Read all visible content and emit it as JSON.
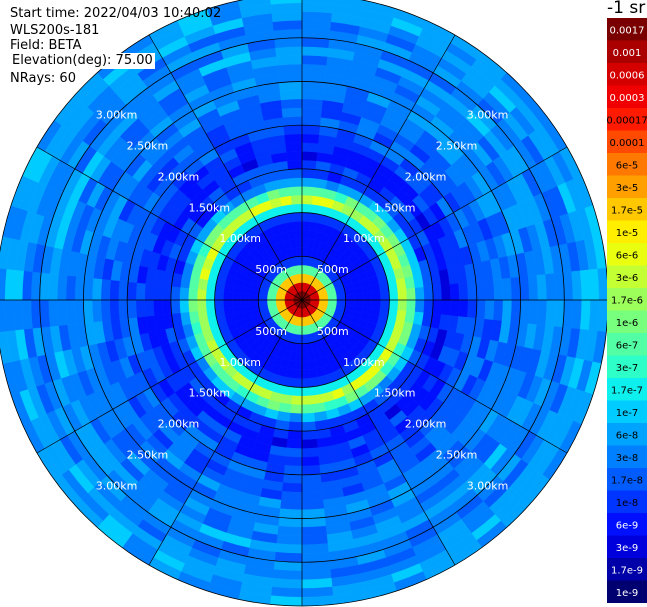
{
  "header": {
    "start_time": "Start time: 2022/04/03 10:40:02",
    "instrument": "WLS200s-181",
    "field": "Field: BETA",
    "elevation": "Elevation(deg): 75.00",
    "nrays": "NRays: 60"
  },
  "colorbar": {
    "units_label": "-1 sr",
    "entries": [
      {
        "label": "0.0017",
        "color": "#7a0000"
      },
      {
        "label": "0.001",
        "color": "#aa0000"
      },
      {
        "label": "0.0006",
        "color": "#d40000"
      },
      {
        "label": "0.0003",
        "color": "#f00000"
      },
      {
        "label": "0.00017",
        "color": "#ff1a00"
      },
      {
        "label": "0.0001",
        "color": "#ff4a00"
      },
      {
        "label": "6e-5",
        "color": "#ff7800"
      },
      {
        "label": "3e-5",
        "color": "#ffa000"
      },
      {
        "label": "1.7e-5",
        "color": "#ffc800"
      },
      {
        "label": "1e-5",
        "color": "#ffee00"
      },
      {
        "label": "6e-6",
        "color": "#eaff10"
      },
      {
        "label": "3e-6",
        "color": "#c4ff33"
      },
      {
        "label": "1.7e-6",
        "color": "#9cff5a"
      },
      {
        "label": "1e-6",
        "color": "#78ff7e"
      },
      {
        "label": "6e-7",
        "color": "#52ffa4"
      },
      {
        "label": "3e-7",
        "color": "#2effc8"
      },
      {
        "label": "1.7e-7",
        "color": "#0ef0ee"
      },
      {
        "label": "1e-7",
        "color": "#00ccff"
      },
      {
        "label": "6e-8",
        "color": "#00a4ff"
      },
      {
        "label": "3e-8",
        "color": "#0080ff"
      },
      {
        "label": "1.7e-8",
        "color": "#005cff"
      },
      {
        "label": "1e-8",
        "color": "#0034ff"
      },
      {
        "label": "6e-9",
        "color": "#0010ff"
      },
      {
        "label": "3e-9",
        "color": "#0000dc"
      },
      {
        "label": "1.7e-9",
        "color": "#0000a8"
      },
      {
        "label": "1e-9",
        "color": "#000070"
      }
    ]
  },
  "chart_data": {
    "type": "heatmap",
    "projection": "polar",
    "field": "BETA",
    "units": "-1 sr",
    "n_rays": 60,
    "elevation_deg": 75.0,
    "range_rings_km": [
      0.5,
      1.0,
      1.5,
      2.0,
      2.5,
      3.0
    ],
    "range_labels": [
      "500m",
      "1.00km",
      "1.50km",
      "2.00km",
      "2.50km",
      "3.00km"
    ],
    "max_range_km": 3.5,
    "radial_profile": {
      "range_km": [
        0.05,
        0.15,
        0.25,
        0.35,
        0.45,
        0.55,
        0.65,
        0.75,
        0.85,
        0.95,
        1.05,
        1.15,
        1.25,
        1.35,
        1.45,
        1.55,
        1.65,
        1.75,
        1.85,
        1.95,
        2.05,
        2.15,
        2.25,
        2.35,
        2.45,
        2.55,
        2.65,
        2.75,
        2.85,
        2.95,
        3.05,
        3.15,
        3.25,
        3.35,
        3.45
      ],
      "beta_level_index": [
        0,
        2,
        8,
        14,
        21,
        22,
        22,
        22,
        22,
        21,
        16,
        11,
        14,
        18,
        21,
        21,
        22,
        21,
        21,
        20,
        20,
        20,
        20,
        19,
        19,
        19,
        19,
        19,
        18,
        19,
        19,
        19,
        18,
        18,
        18
      ]
    }
  }
}
